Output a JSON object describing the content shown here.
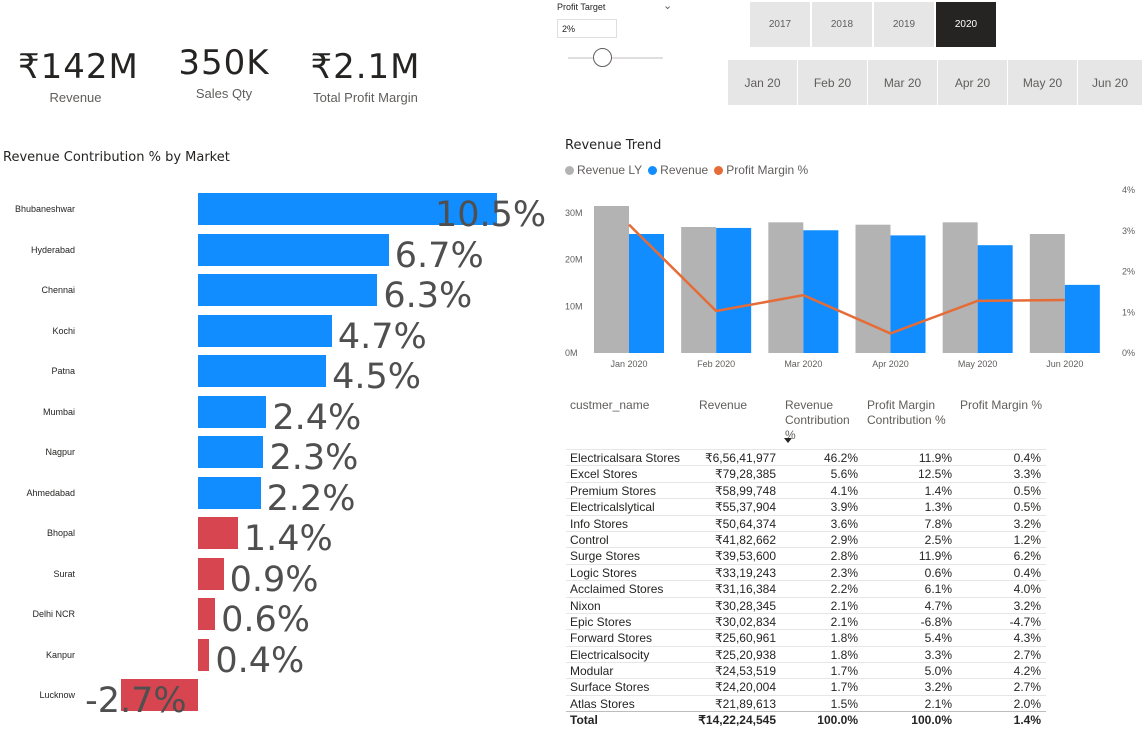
{
  "kpis": [
    {
      "value": "₹142M",
      "label": "Revenue"
    },
    {
      "value": "350K",
      "label": "Sales Qty"
    },
    {
      "value": "₹2.1M",
      "label": "Total Profit Margin"
    }
  ],
  "profit_target": {
    "title": "Profit Target",
    "value": "2%",
    "slider_fraction": 0.37,
    "chevron": "⌄"
  },
  "year_slicer": {
    "options": [
      "2017",
      "2018",
      "2019",
      "2020"
    ],
    "selected": "2020"
  },
  "month_slicer": {
    "options": [
      "Jan 20",
      "Feb 20",
      "Mar 20",
      "Apr 20",
      "May 20",
      "Jun 20"
    ]
  },
  "colors": {
    "positive": "#118dff",
    "negative": "#d64550",
    "revenue_ly": "#b3b3b3",
    "revenue": "#118dff",
    "profit_margin": "#e66c37"
  },
  "chart_data": [
    {
      "type": "bar",
      "title": "Revenue Contribution % by Market",
      "categories": [
        "Bhubaneshwar",
        "Hyderabad",
        "Chennai",
        "Kochi",
        "Patna",
        "Mumbai",
        "Nagpur",
        "Ahmedabad",
        "Bhopal",
        "Surat",
        "Delhi NCR",
        "Kanpur",
        "Lucknow"
      ],
      "values": [
        10.5,
        6.7,
        6.3,
        4.7,
        4.5,
        2.4,
        2.3,
        2.2,
        1.4,
        0.9,
        0.6,
        0.4,
        -2.7
      ],
      "labels": [
        "10.5%",
        "6.7%",
        "6.3%",
        "4.7%",
        "4.5%",
        "2.4%",
        "2.3%",
        "2.2%",
        "1.4%",
        "0.9%",
        "0.6%",
        "0.4%",
        "-2.7%"
      ],
      "orientation": "horizontal",
      "xlim": [
        -2.7,
        10.5
      ]
    },
    {
      "type": "bar",
      "title": "Revenue Trend",
      "categories": [
        "Jan 2020",
        "Feb 2020",
        "Mar 2020",
        "Apr 2020",
        "May 2020",
        "Jun 2020"
      ],
      "series": [
        {
          "name": "Revenue LY",
          "values": [
            31.5,
            27.0,
            28.0,
            27.5,
            28.0,
            25.5
          ]
        },
        {
          "name": "Revenue",
          "values": [
            25.5,
            26.8,
            26.3,
            25.2,
            23.1,
            14.6
          ]
        },
        {
          "name": "Profit Margin %",
          "type": "line",
          "axis": "right",
          "values": [
            3.15,
            1.03,
            1.42,
            0.48,
            1.28,
            1.3
          ]
        }
      ],
      "y_ticks": [
        "0M",
        "10M",
        "20M",
        "30M"
      ],
      "ylim": [
        0,
        35
      ],
      "y2_ticks": [
        "0%",
        "1%",
        "2%",
        "3%",
        "4%"
      ],
      "y2lim": [
        0,
        4
      ]
    }
  ],
  "table": {
    "headers": [
      "custmer_name",
      "Revenue",
      "Revenue Contribution %",
      "Profit Margin Contribution %",
      "Profit Margin %"
    ],
    "header_lines": [
      [
        "custmer_name"
      ],
      [
        "Revenue"
      ],
      [
        "Revenue",
        "Contribution",
        "%"
      ],
      [
        "Profit Margin",
        "Contribution %"
      ],
      [
        "Profit Margin %"
      ]
    ],
    "rows": [
      [
        "Electricalsara Stores",
        "₹6,56,41,977",
        "46.2%",
        "11.9%",
        "0.4%"
      ],
      [
        "Excel Stores",
        "₹79,28,385",
        "5.6%",
        "12.5%",
        "3.3%"
      ],
      [
        "Premium Stores",
        "₹58,99,748",
        "4.1%",
        "1.4%",
        "0.5%"
      ],
      [
        "Electricalslytical",
        "₹55,37,904",
        "3.9%",
        "1.3%",
        "0.5%"
      ],
      [
        "Info Stores",
        "₹50,64,374",
        "3.6%",
        "7.8%",
        "3.2%"
      ],
      [
        "Control",
        "₹41,82,662",
        "2.9%",
        "2.5%",
        "1.2%"
      ],
      [
        "Surge Stores",
        "₹39,53,600",
        "2.8%",
        "11.9%",
        "6.2%"
      ],
      [
        "Logic Stores",
        "₹33,19,243",
        "2.3%",
        "0.6%",
        "0.4%"
      ],
      [
        "Acclaimed Stores",
        "₹31,16,384",
        "2.2%",
        "6.1%",
        "4.0%"
      ],
      [
        "Nixon",
        "₹30,28,345",
        "2.1%",
        "4.7%",
        "3.2%"
      ],
      [
        "Epic Stores",
        "₹30,02,834",
        "2.1%",
        "-6.8%",
        "-4.7%"
      ],
      [
        "Forward Stores",
        "₹25,60,961",
        "1.8%",
        "5.4%",
        "4.3%"
      ],
      [
        "Electricalsocity",
        "₹25,20,938",
        "1.8%",
        "3.3%",
        "2.7%"
      ],
      [
        "Modular",
        "₹24,53,519",
        "1.7%",
        "5.0%",
        "4.2%"
      ],
      [
        "Surface Stores",
        "₹24,20,004",
        "1.7%",
        "3.2%",
        "2.7%"
      ],
      [
        "Atlas Stores",
        "₹21,89,613",
        "1.5%",
        "2.1%",
        "2.0%"
      ]
    ],
    "total": [
      "Total",
      "₹14,22,24,545",
      "100.0%",
      "100.0%",
      "1.4%"
    ]
  }
}
